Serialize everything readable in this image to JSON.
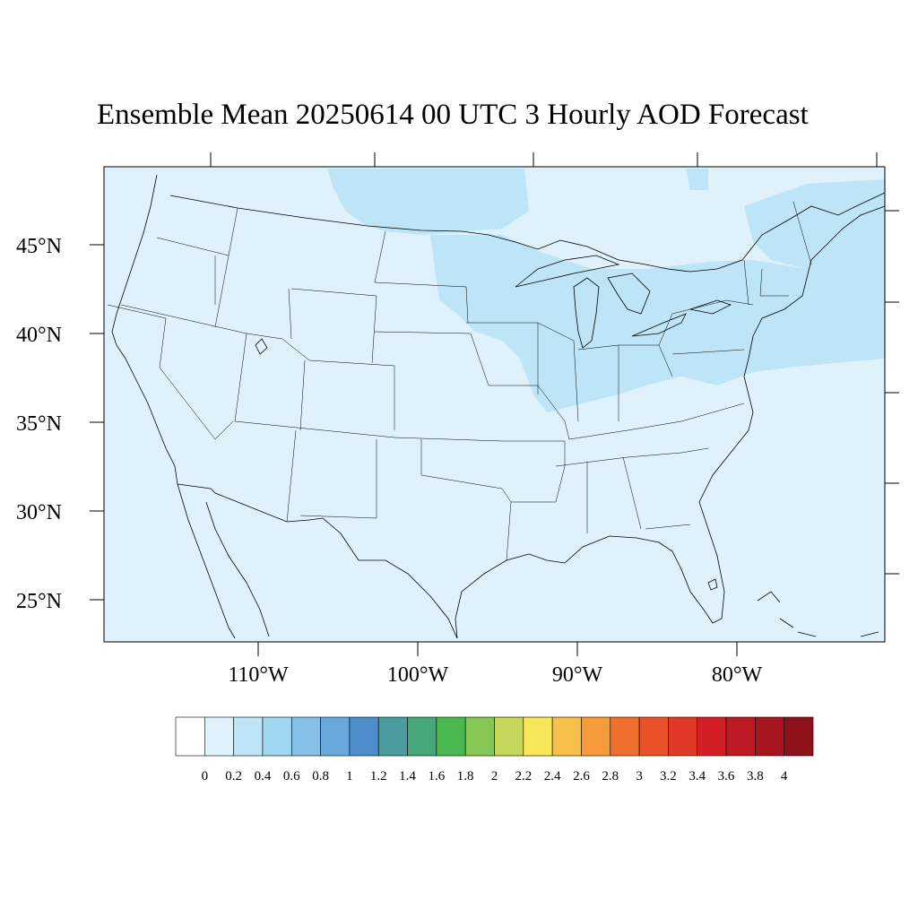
{
  "title": "Ensemble Mean 20250614 00 UTC 3 Hourly AOD Forecast",
  "lat_ticks": [
    "45°N",
    "40°N",
    "35°N",
    "30°N",
    "25°N"
  ],
  "lon_ticks": [
    "110°W",
    "100°W",
    "90°W",
    "80°W"
  ],
  "colorbar": {
    "labels": [
      "0",
      "0.2",
      "0.4",
      "0.6",
      "0.8",
      "1",
      "1.2",
      "1.4",
      "1.6",
      "1.8",
      "2",
      "2.2",
      "2.4",
      "2.6",
      "2.8",
      "3",
      "3.2",
      "3.4",
      "3.6",
      "3.8",
      "4"
    ],
    "colors": [
      "#ffffff",
      "#dff2fb",
      "#bde5f7",
      "#a0d8f3",
      "#86c0e6",
      "#69a8dc",
      "#4c8dcb",
      "#4b9c9e",
      "#46a878",
      "#49b84e",
      "#86c654",
      "#c4d75b",
      "#f7e65a",
      "#f8c04a",
      "#f79a3a",
      "#f16f2e",
      "#ea5229",
      "#e03a26",
      "#d51f27",
      "#be1a24",
      "#a7161f",
      "#8f121a"
    ]
  },
  "map": {
    "background_color": "#dff2fb",
    "highlight_color": "#bde5f7",
    "boundary_color": "#000000"
  }
}
